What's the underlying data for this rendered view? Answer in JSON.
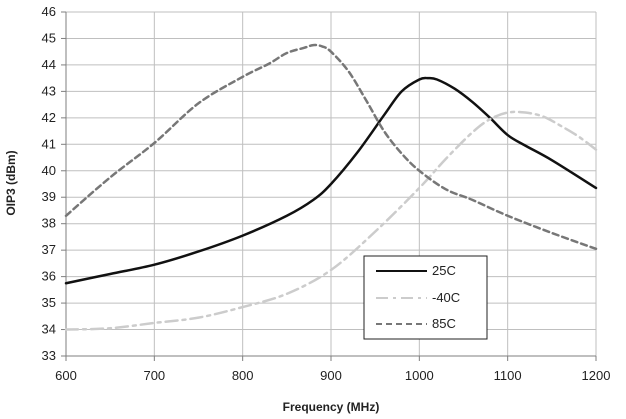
{
  "chart_data": {
    "type": "line",
    "title": "",
    "xlabel": "Frequency (MHz)",
    "ylabel": "OIP3 (dBm)",
    "xlim": [
      600,
      1200
    ],
    "ylim": [
      33,
      46
    ],
    "xticks": [
      600,
      700,
      800,
      900,
      1000,
      1100,
      1200
    ],
    "yticks": [
      33,
      34,
      35,
      36,
      37,
      38,
      39,
      40,
      41,
      42,
      43,
      44,
      45,
      46
    ],
    "grid": true,
    "legend_position": "inside-lower-right",
    "series": [
      {
        "name": "25C",
        "color": "#111111",
        "style": "solid",
        "x": [
          600,
          650,
          700,
          750,
          800,
          850,
          880,
          900,
          930,
          960,
          980,
          1000,
          1010,
          1020,
          1040,
          1060,
          1080,
          1100,
          1120,
          1150,
          1200
        ],
        "y": [
          35.75,
          36.1,
          36.45,
          36.95,
          37.55,
          38.3,
          38.9,
          39.5,
          40.7,
          42.1,
          43.0,
          43.45,
          43.5,
          43.45,
          43.1,
          42.6,
          42.0,
          41.35,
          40.95,
          40.4,
          39.35
        ]
      },
      {
        "name": "-40C",
        "color": "#cccccc",
        "style": "dash-dot",
        "x": [
          600,
          650,
          700,
          750,
          800,
          850,
          900,
          950,
          1000,
          1030,
          1060,
          1080,
          1100,
          1120,
          1140,
          1160,
          1180,
          1200
        ],
        "y": [
          34.0,
          34.05,
          34.25,
          34.45,
          34.85,
          35.35,
          36.25,
          37.7,
          39.35,
          40.45,
          41.45,
          41.95,
          42.2,
          42.2,
          42.05,
          41.7,
          41.3,
          40.8
        ]
      },
      {
        "name": "85C",
        "color": "#777777",
        "style": "dashed",
        "x": [
          600,
          650,
          700,
          750,
          800,
          830,
          850,
          870,
          880,
          890,
          900,
          920,
          940,
          960,
          980,
          1000,
          1030,
          1060,
          1100,
          1150,
          1200
        ],
        "y": [
          38.3,
          39.75,
          41.05,
          42.55,
          43.55,
          44.05,
          44.45,
          44.65,
          44.75,
          44.7,
          44.5,
          43.75,
          42.65,
          41.5,
          40.65,
          40.0,
          39.3,
          38.9,
          38.3,
          37.65,
          37.05
        ]
      }
    ]
  }
}
